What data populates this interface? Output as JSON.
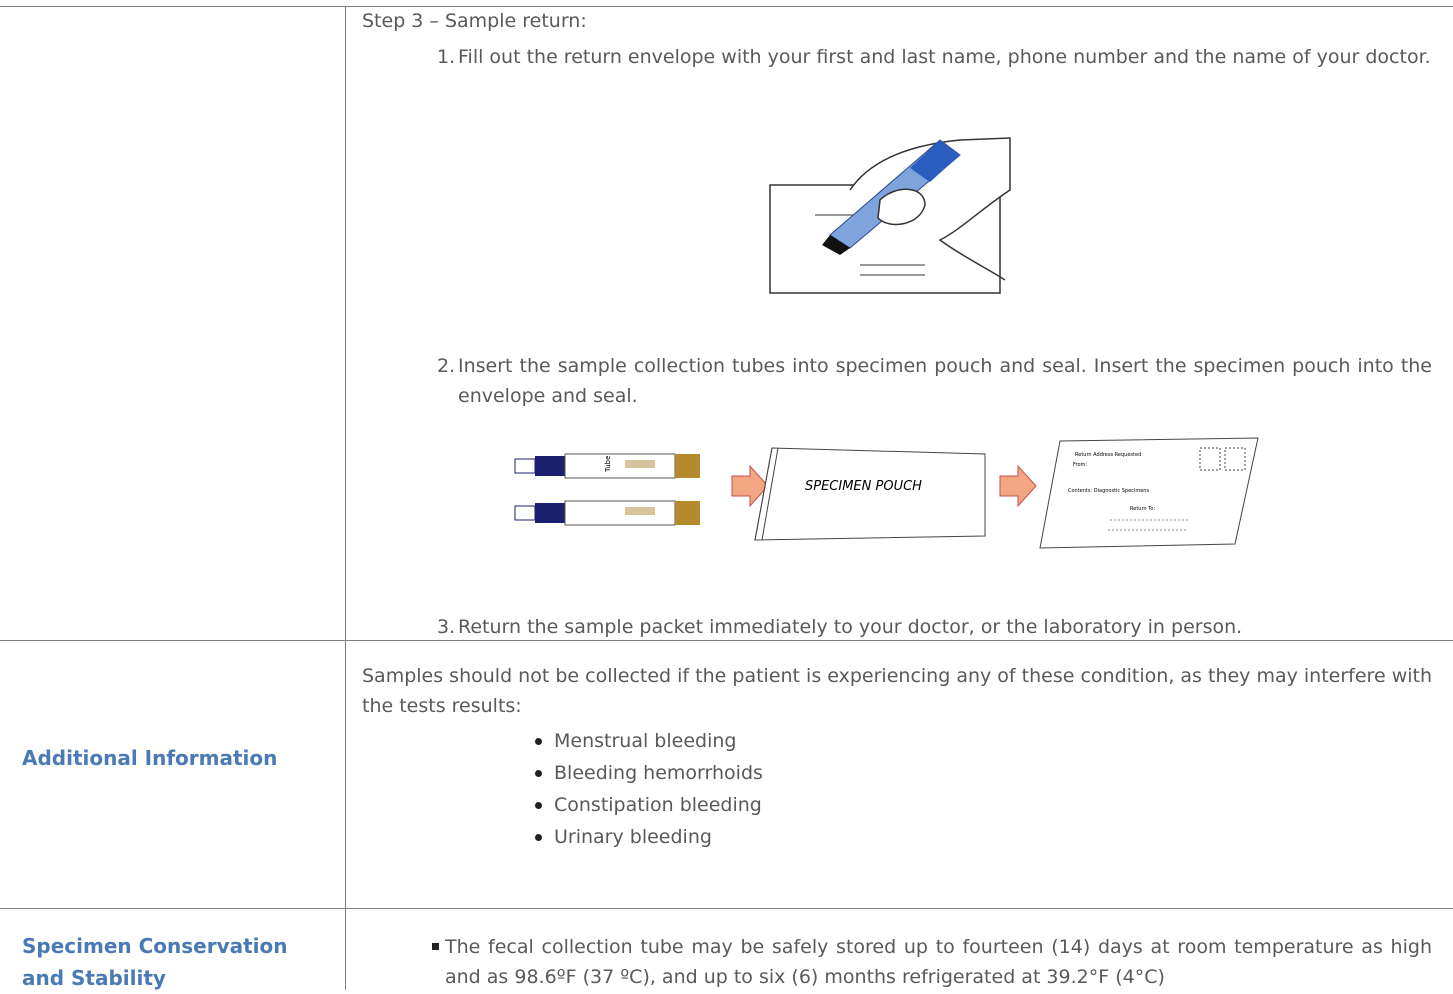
{
  "table": {
    "rows": [
      {
        "heading": "Step 3 – Sample return:",
        "steps": [
          {
            "number": "1.",
            "text": "Fill out the return envelope with your first and last name, phone number and the name of your doctor."
          },
          {
            "number": "2.",
            "text": "Insert the sample collection tubes into specimen pouch and seal. Insert the specimen pouch into the envelope and seal."
          },
          {
            "number": "3.",
            "text": "Return the sample packet immediately to your doctor, or the laboratory in person."
          }
        ],
        "illustration": {
          "tube_label": "Tube",
          "pouch_label": "SPECIMEN POUCH",
          "envelope": {
            "header": "Return Address Requested",
            "from": "From:",
            "contents": "Contents: Diagnostic Specimens",
            "return_to": "Return To:"
          }
        }
      },
      {
        "label": "Additional Information",
        "text": "Samples should not be collected if the patient is experiencing any of these condition, as they may interfere with the tests results:",
        "bullets": [
          "Menstrual bleeding",
          "Bleeding hemorrhoids",
          "Constipation bleeding",
          "Urinary bleeding"
        ]
      },
      {
        "label": "Specimen Conservation and Stability",
        "bullets": [
          "The fecal collection tube may be safely stored up to fourteen (14) days at room temperature as high and as 98.6ºF (37 ºC), and up to six (6) months refrigerated at 39.2°F (4°C)"
        ]
      }
    ]
  }
}
